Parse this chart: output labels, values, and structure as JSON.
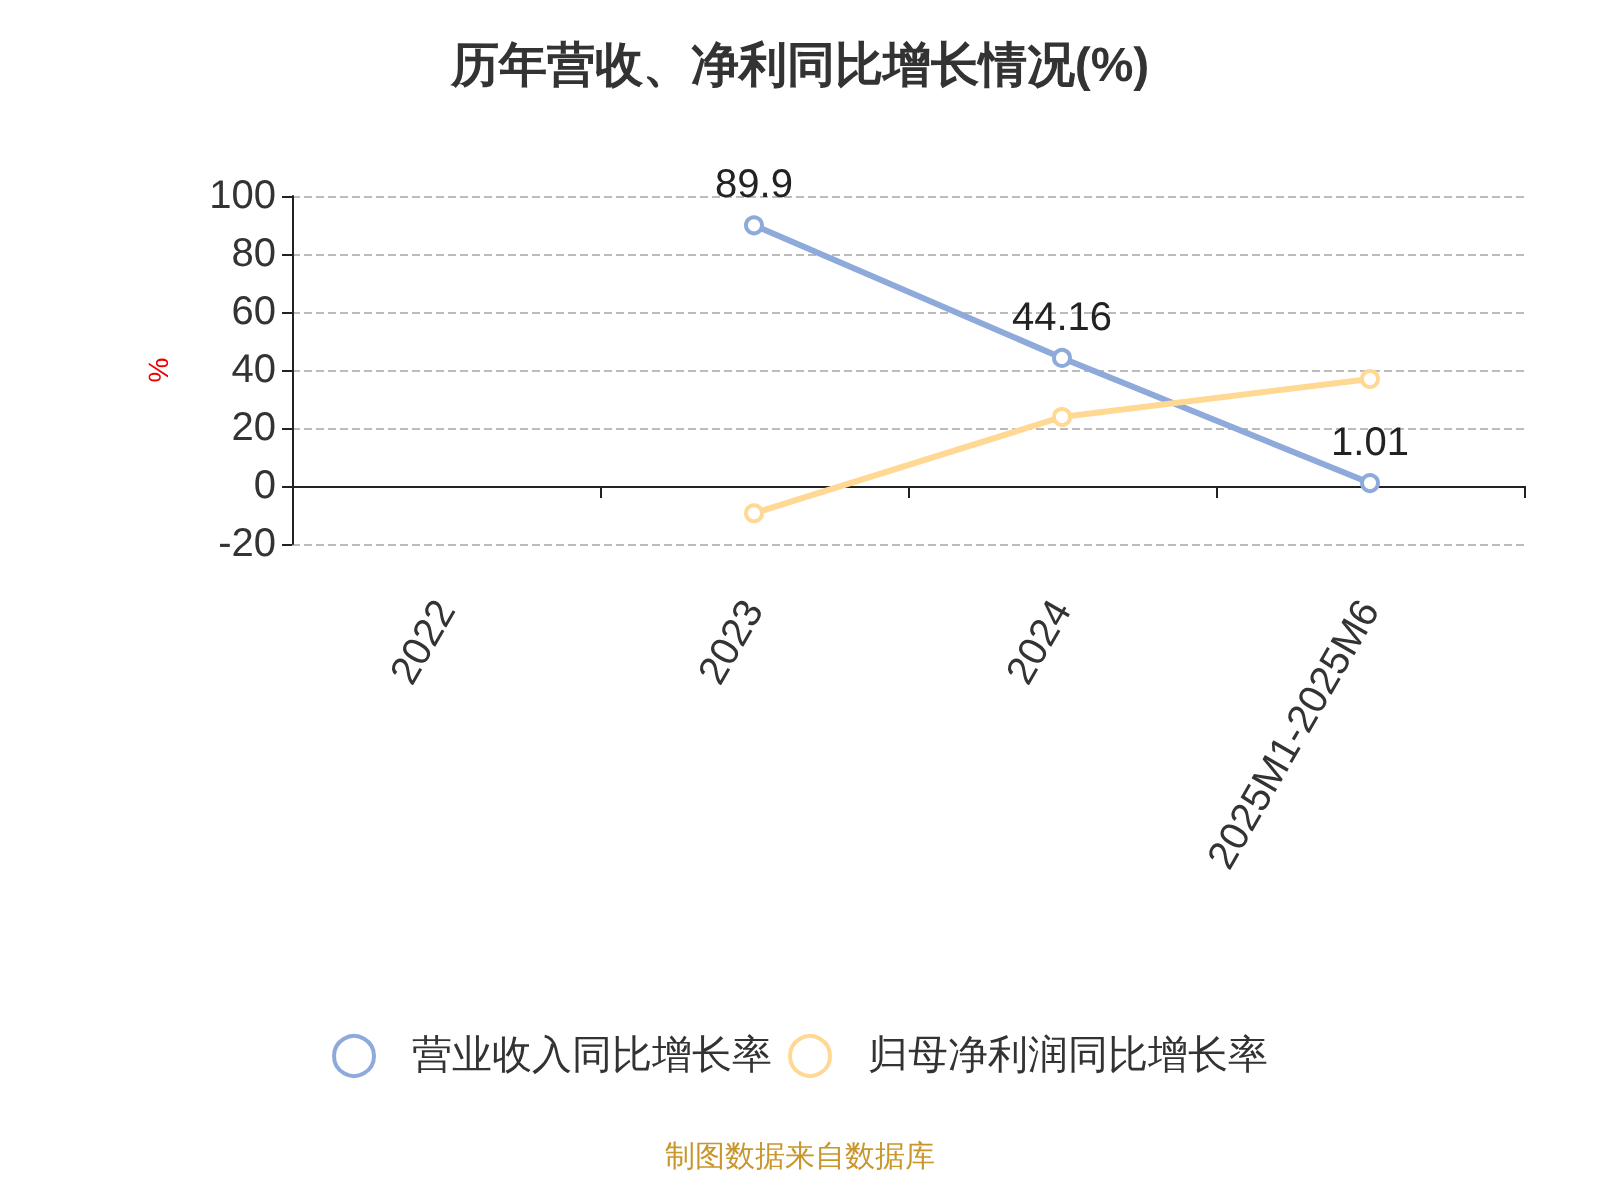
{
  "chart_data": {
    "type": "line",
    "title": "历年营收、净利同比增长情况(%)",
    "ylabel": "%",
    "categories": [
      "2022",
      "2023",
      "2024",
      "2025M1-2025M6"
    ],
    "series": [
      {
        "name": "营业收入同比增长率",
        "color": "#8eaadb",
        "values": [
          null,
          89.9,
          44.16,
          1.01
        ],
        "value_labels": [
          null,
          "89.9",
          "44.16",
          "1.01"
        ]
      },
      {
        "name": "归母净利润同比增长率",
        "color": "#ffd993",
        "values": [
          null,
          -9.4,
          23.8,
          36.9
        ]
      }
    ],
    "ylim": [
      -20,
      100
    ],
    "yticks": [
      -20,
      0,
      20,
      40,
      60,
      80,
      100
    ],
    "grid": "y",
    "legend": "bottom",
    "marker": "circle",
    "line_style": "solid",
    "annotations": [
      "制图数据来自数据库"
    ]
  }
}
